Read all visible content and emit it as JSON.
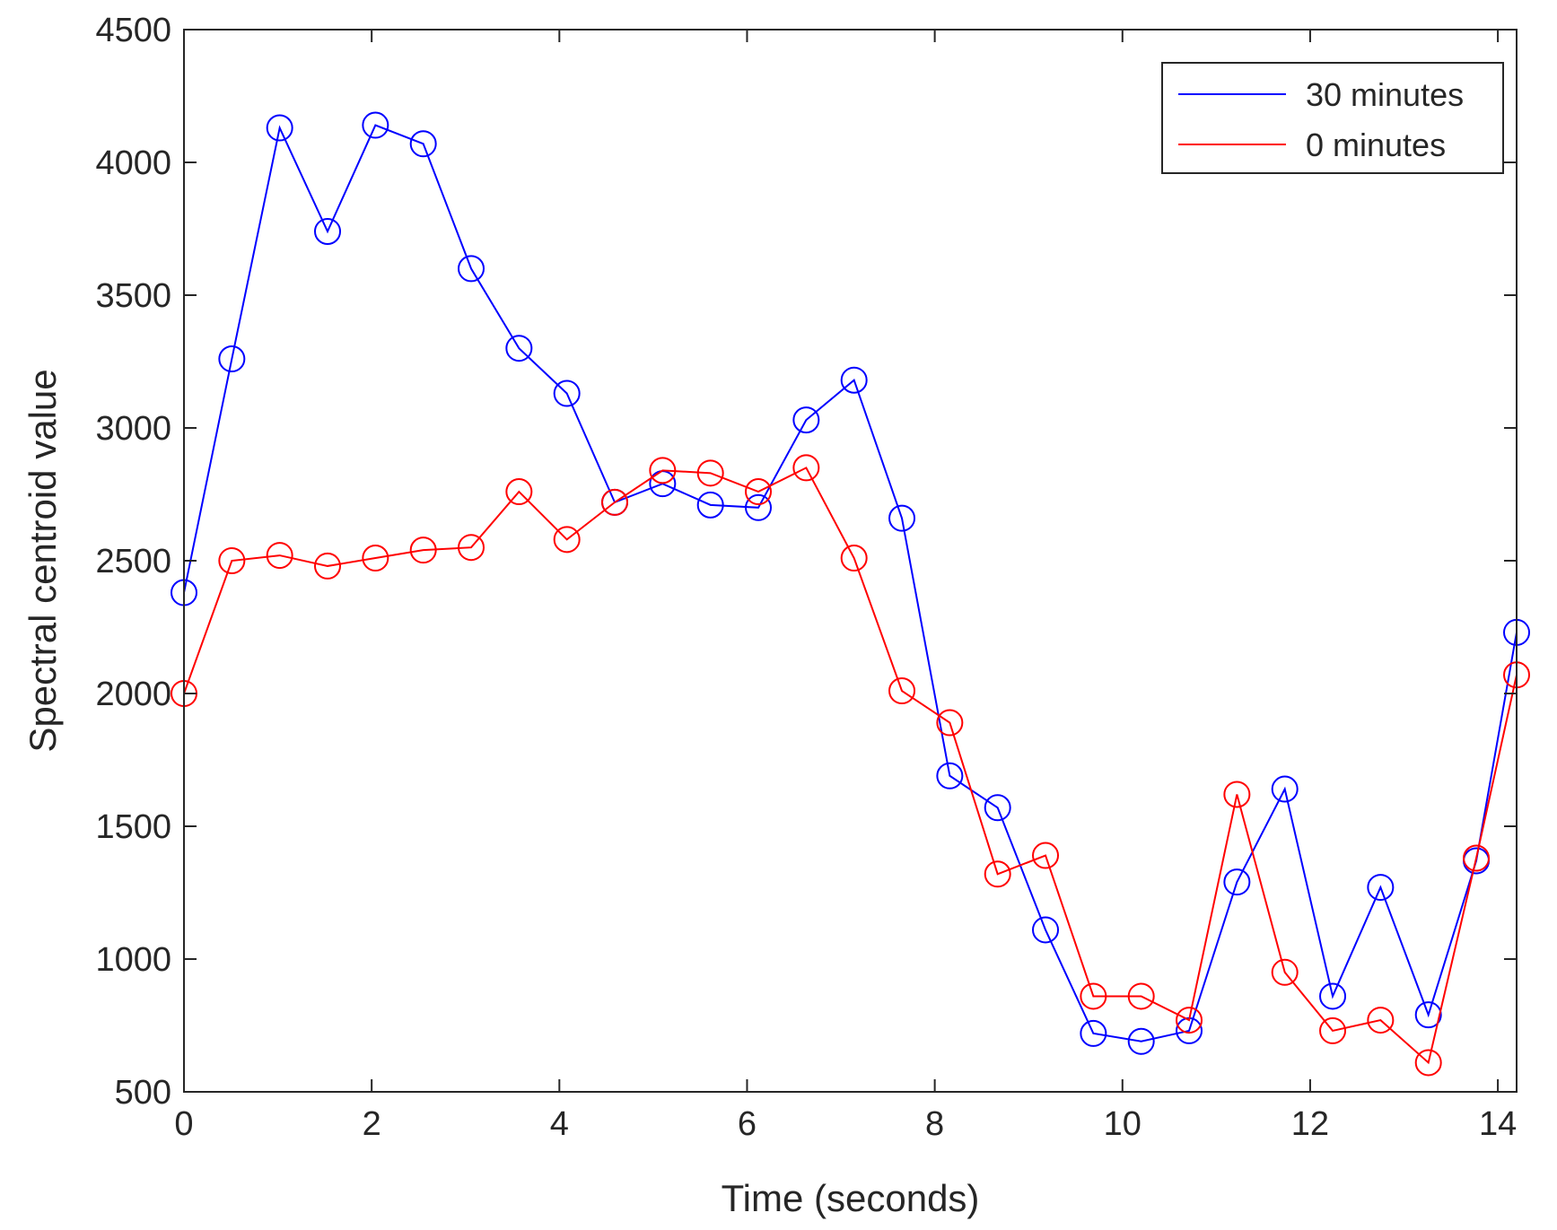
{
  "chart_data": {
    "type": "line",
    "title": "",
    "xlabel": "Time (seconds)",
    "ylabel": "Spectral centroid value",
    "xlim": [
      0,
      14.2
    ],
    "ylim": [
      500,
      4500
    ],
    "xticks": [
      0,
      2,
      4,
      6,
      8,
      10,
      12,
      14
    ],
    "yticks": [
      500,
      1000,
      1500,
      2000,
      2500,
      3000,
      3500,
      4000,
      4500
    ],
    "grid": false,
    "legend_position": "top-right",
    "x": [
      0,
      0.51,
      1.02,
      1.53,
      2.04,
      2.55,
      3.06,
      3.57,
      4.08,
      4.59,
      5.1,
      5.61,
      6.12,
      6.63,
      7.14,
      7.65,
      8.16,
      8.67,
      9.18,
      9.69,
      10.2,
      10.71,
      11.22,
      11.73,
      12.24,
      12.75,
      13.26,
      13.77,
      14.2
    ],
    "series": [
      {
        "name": "30 minutes",
        "color": "#0000ff",
        "marker": "circle",
        "values": [
          2380,
          3260,
          4130,
          3740,
          4140,
          4070,
          3600,
          3300,
          3130,
          2720,
          2790,
          2710,
          2700,
          3030,
          3180,
          2660,
          1690,
          1570,
          1110,
          720,
          690,
          730,
          1290,
          1640,
          860,
          1270,
          790,
          1370,
          2230
        ]
      },
      {
        "name": "0 minutes",
        "color": "#ff0000",
        "marker": "circle",
        "values": [
          2000,
          2500,
          2520,
          2480,
          2510,
          2540,
          2550,
          2760,
          2580,
          2720,
          2840,
          2830,
          2760,
          2850,
          2510,
          2010,
          1890,
          1320,
          1390,
          860,
          860,
          770,
          1620,
          950,
          730,
          770,
          610,
          1380,
          2070
        ]
      }
    ]
  }
}
